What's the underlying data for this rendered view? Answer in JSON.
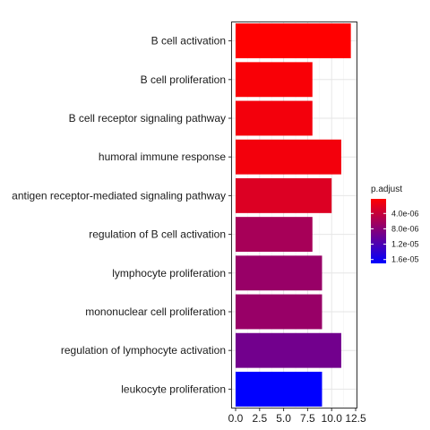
{
  "chart_data": {
    "type": "bar",
    "orientation": "horizontal",
    "categories": [
      "B cell activation",
      "B cell proliferation",
      "B cell receptor signaling pathway",
      "humoral immune response",
      "antigen receptor-mediated signaling pathway",
      "regulation of B cell activation",
      "lymphocyte proliferation",
      "mononuclear cell proliferation",
      "regulation of lymphocyte activation",
      "leukocyte proliferation"
    ],
    "values": [
      12,
      8,
      8,
      11,
      10,
      8,
      9,
      9,
      11,
      9
    ],
    "p_adjust": [
      2e-07,
      6e-07,
      1e-06,
      1e-06,
      2.5e-06,
      6e-06,
      7e-06,
      7e-06,
      9.5e-06,
      1.7e-05
    ],
    "xlim": [
      0,
      12.5
    ],
    "x_ticks": [
      "0.0",
      "2.5",
      "5.0",
      "7.5",
      "10.0",
      "12.5"
    ],
    "x_tick_values": [
      0,
      2.5,
      5,
      7.5,
      10,
      12.5
    ],
    "grid": true,
    "legend": {
      "title": "p.adjust",
      "placement": "right",
      "labels": [
        "4.0e-06",
        "8.0e-06",
        "1.2e-05",
        "1.6e-05"
      ],
      "label_values": [
        4e-06,
        8e-06,
        1.2e-05,
        1.6e-05
      ],
      "range": [
        2e-07,
        1.7e-05
      ],
      "low_color": "#ff0000",
      "high_color": "#0000ff"
    }
  }
}
